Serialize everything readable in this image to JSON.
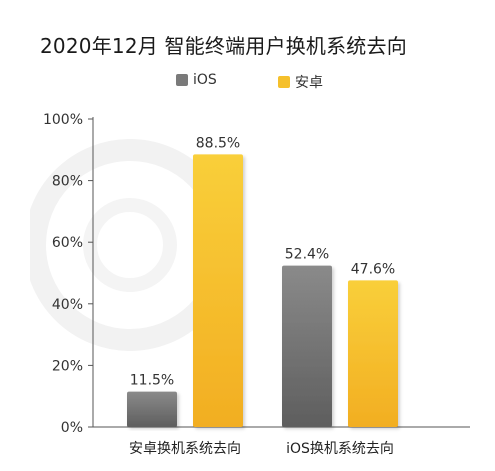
{
  "chart_data": {
    "type": "bar",
    "title": "2020年12月 智能终端用户换机系统去向",
    "categories": [
      "安卓换机系统去向",
      "iOS换机系统去向"
    ],
    "series": [
      {
        "name": "iOS",
        "values": [
          11.5,
          52.4
        ],
        "labels": [
          "11.5%",
          "52.4%"
        ],
        "color": "#7a7a7a"
      },
      {
        "name": "安卓",
        "values": [
          88.5,
          47.6
        ],
        "labels": [
          "88.5%",
          "47.6%"
        ],
        "color": "#f5c02c"
      }
    ],
    "ylim": [
      0,
      100
    ],
    "yticks": [
      0,
      20,
      40,
      60,
      80,
      100
    ],
    "ytick_labels": [
      "0%",
      "20%",
      "40%",
      "60%",
      "80%",
      "100%"
    ],
    "legend_position": "top-center",
    "grid": false,
    "xlabel": "",
    "ylabel": ""
  }
}
